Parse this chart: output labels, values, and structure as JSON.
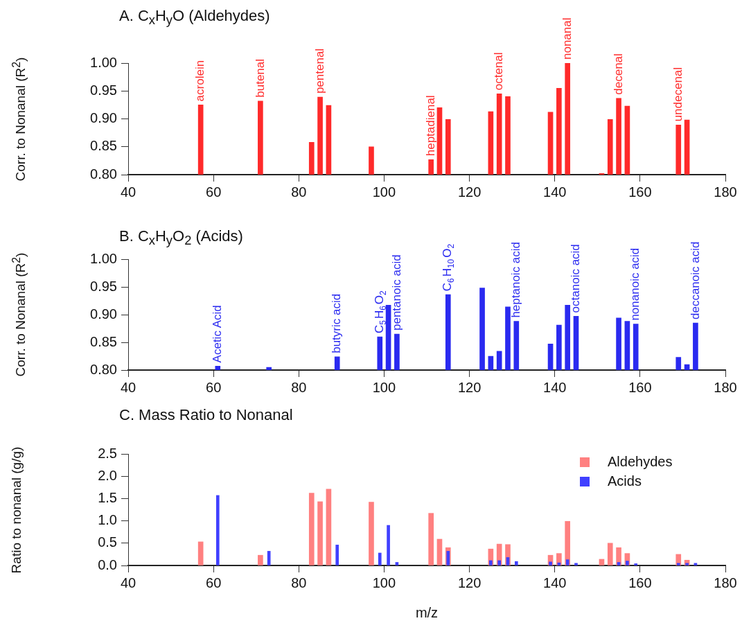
{
  "chart_data": [
    {
      "type": "bar",
      "title": "A. C$_{x}$H$_{y}$O (Aldehydes)",
      "ylabel": "Corr. to Nonanal (R$^{2}$)",
      "series": [
        {
          "color": "#ff2a2a",
          "x": [
            57,
            71,
            83,
            85,
            87,
            97,
            111,
            113,
            115,
            125,
            127,
            129,
            139,
            141,
            143,
            151,
            153,
            155,
            157,
            169,
            171
          ],
          "values": [
            0.925,
            0.932,
            0.858,
            0.939,
            0.924,
            0.85,
            0.827,
            0.92,
            0.899,
            0.913,
            0.945,
            0.94,
            0.912,
            0.955,
            1.0,
            0.802,
            0.899,
            0.937,
            0.923,
            0.889,
            0.898
          ]
        }
      ],
      "xlim": [
        40,
        180
      ],
      "xticks": [
        40,
        60,
        80,
        100,
        120,
        140,
        160,
        180
      ],
      "ylim": [
        0.8,
        1.0
      ],
      "yticks": [
        {
          "value": 0.8,
          "label": "0.80"
        },
        {
          "value": 0.85,
          "label": "0.85"
        },
        {
          "value": 0.9,
          "label": "0.90"
        },
        {
          "value": 0.95,
          "label": "0.95"
        },
        {
          "value": 1.0,
          "label": "1.00"
        }
      ],
      "annotations": [
        {
          "text": "acrolein",
          "x": 57,
          "y": 0.925
        },
        {
          "text": "butenal",
          "x": 71,
          "y": 0.932
        },
        {
          "text": "pentenal",
          "x": 85,
          "y": 0.939
        },
        {
          "text": "heptadienal",
          "x": 111,
          "y": 0.827
        },
        {
          "text": "octenal",
          "x": 127,
          "y": 0.945
        },
        {
          "text": "nonanal",
          "x": 143,
          "y": 1.0
        },
        {
          "text": "decenal",
          "x": 155,
          "y": 0.937
        },
        {
          "text": "undecenal",
          "x": 169,
          "y": 0.889
        }
      ]
    },
    {
      "type": "bar",
      "title": "B. C$_{x}$H$_{y}$O$_{2}$ (Acids)",
      "ylabel": "Corr. to Nonanal (R$^{2}$)",
      "series": [
        {
          "color": "#2a2af0",
          "x": [
            61,
            73,
            89,
            99,
            101,
            103,
            115,
            123,
            125,
            127,
            129,
            131,
            139,
            141,
            143,
            145,
            155,
            157,
            159,
            169,
            171,
            173
          ],
          "values": [
            0.807,
            0.805,
            0.824,
            0.86,
            0.917,
            0.865,
            0.936,
            0.948,
            0.825,
            0.834,
            0.914,
            0.888,
            0.847,
            0.881,
            0.917,
            0.897,
            0.894,
            0.888,
            0.883,
            0.823,
            0.81,
            0.885
          ]
        }
      ],
      "xlim": [
        40,
        180
      ],
      "xticks": [
        40,
        60,
        80,
        100,
        120,
        140,
        160,
        180
      ],
      "ylim": [
        0.8,
        1.0
      ],
      "yticks": [
        {
          "value": 0.8,
          "label": "0.80"
        },
        {
          "value": 0.85,
          "label": "0.85"
        },
        {
          "value": 0.9,
          "label": "0.90"
        },
        {
          "value": 0.95,
          "label": "0.95"
        },
        {
          "value": 1.0,
          "label": "1.00"
        }
      ],
      "annotations": [
        {
          "text": "Acetic Acid",
          "x": 61,
          "y": 0.807
        },
        {
          "text": "butyric acid",
          "x": 89,
          "y": 0.824
        },
        {
          "text": "C$_{5}$H$_{6}$O$_{2}$",
          "x": 99,
          "y": 0.86
        },
        {
          "text": "pentanoic acid",
          "x": 103,
          "y": 0.865
        },
        {
          "text": "C$_{6}$H$_{10}$O$_{2}$",
          "x": 115,
          "y": 0.936
        },
        {
          "text": "heptanoic acid",
          "x": 131,
          "y": 0.888
        },
        {
          "text": "octanoic acid",
          "x": 145,
          "y": 0.897
        },
        {
          "text": "nonanoic acid",
          "x": 159,
          "y": 0.883
        },
        {
          "text": "deccanoic acid",
          "x": 173,
          "y": 0.885
        }
      ]
    },
    {
      "type": "bar",
      "title": "C.  Mass Ratio to Nonanal",
      "xlabel": "m/z",
      "ylabel": "Ratio to nonanal (g/g)",
      "legend": "top right",
      "series": [
        {
          "name": "Aldehydes",
          "color": "#ff8080",
          "x": [
            57,
            71,
            83,
            85,
            87,
            97,
            111,
            113,
            115,
            125,
            127,
            129,
            139,
            141,
            143,
            151,
            153,
            155,
            157,
            169,
            171
          ],
          "values": [
            0.53,
            0.23,
            1.62,
            1.43,
            1.71,
            1.42,
            1.17,
            0.59,
            0.4,
            0.37,
            0.48,
            0.47,
            0.23,
            0.27,
            0.99,
            0.14,
            0.5,
            0.4,
            0.27,
            0.25,
            0.12
          ]
        },
        {
          "name": "Acids",
          "color": "#4040ff",
          "x": [
            61,
            73,
            89,
            99,
            101,
            103,
            115,
            125,
            127,
            129,
            131,
            139,
            141,
            143,
            145,
            155,
            157,
            159,
            169,
            171,
            173
          ],
          "values": [
            1.57,
            0.32,
            0.46,
            0.28,
            0.9,
            0.07,
            0.32,
            0.11,
            0.11,
            0.18,
            0.09,
            0.08,
            0.06,
            0.13,
            0.05,
            0.07,
            0.1,
            0.04,
            0.05,
            0.05,
            0.05
          ]
        }
      ],
      "xlim": [
        40,
        180
      ],
      "xticks": [
        40,
        60,
        80,
        100,
        120,
        140,
        160,
        180
      ],
      "ylim": [
        0,
        2.5
      ],
      "yticks": [
        {
          "value": 0,
          "label": "0.0"
        },
        {
          "value": 0.5,
          "label": "0.5"
        },
        {
          "value": 1,
          "label": "1.0"
        },
        {
          "value": 1.5,
          "label": "1.5"
        },
        {
          "value": 2,
          "label": "2.0"
        },
        {
          "value": 2.5,
          "label": "2.5"
        }
      ]
    }
  ]
}
